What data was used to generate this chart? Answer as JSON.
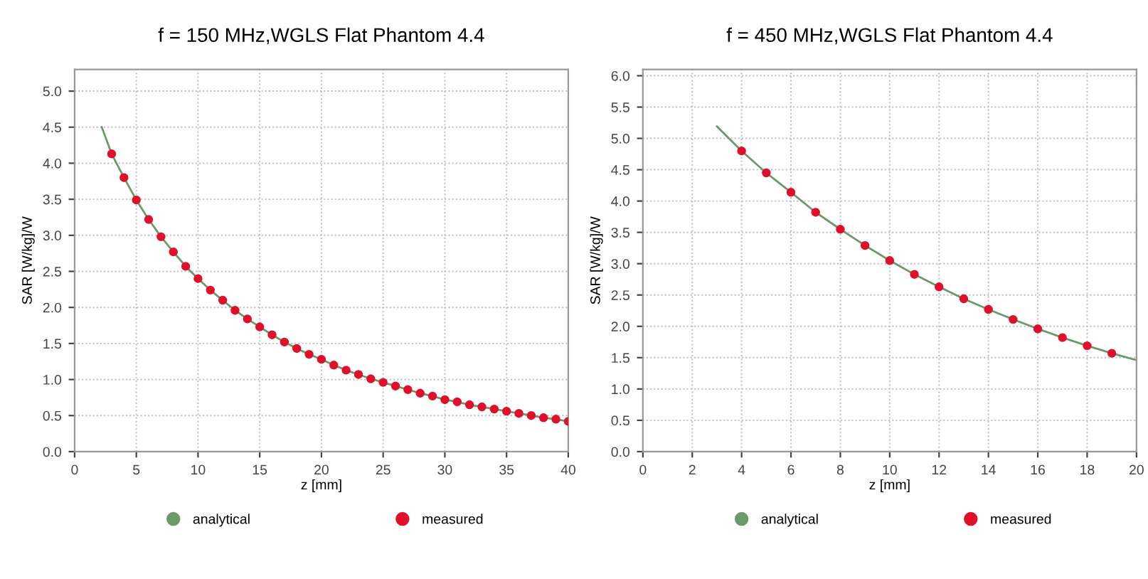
{
  "chart_data": [
    {
      "type": "line",
      "title": "f = 150 MHz,WGLS Flat Phantom 4.4",
      "xlabel": "z [mm]",
      "ylabel": "SAR [W/kg]/W",
      "xlim": [
        0,
        40
      ],
      "xticks": [
        0,
        5,
        10,
        15,
        20,
        25,
        30,
        35,
        40
      ],
      "ylim": [
        0,
        5.3
      ],
      "yticks": [
        {
          "value": 0,
          "label": "0.0"
        },
        0.5,
        {
          "value": 1,
          "label": "1.0"
        },
        1.5,
        {
          "value": 2,
          "label": "2.0"
        },
        2.5,
        {
          "value": 3,
          "label": "3.0"
        },
        3.5,
        {
          "value": 4,
          "label": "4.0"
        },
        4.5,
        {
          "value": 5,
          "label": "5.0"
        }
      ],
      "grid": true,
      "legend": "bottom",
      "series": [
        {
          "name": "analytical",
          "color": "#6a9a6a",
          "x": [
            2.2,
            3,
            4,
            5,
            6,
            7,
            8,
            9,
            10,
            11,
            12,
            13,
            14,
            15,
            16,
            17,
            18,
            19,
            20,
            21,
            22,
            23,
            24,
            25,
            26,
            27,
            28,
            29,
            30,
            31,
            32,
            33,
            34,
            35,
            36,
            37,
            38,
            39,
            40
          ],
          "values": [
            4.5,
            4.13,
            3.8,
            3.49,
            3.22,
            2.98,
            2.77,
            2.57,
            2.4,
            2.24,
            2.1,
            1.96,
            1.84,
            1.73,
            1.62,
            1.52,
            1.43,
            1.35,
            1.28,
            1.2,
            1.13,
            1.07,
            1.01,
            0.96,
            0.91,
            0.86,
            0.81,
            0.77,
            0.72,
            0.69,
            0.65,
            0.62,
            0.59,
            0.56,
            0.53,
            0.5,
            0.47,
            0.45,
            0.42
          ]
        },
        {
          "name": "measured",
          "type": "scatter",
          "marker": "circle",
          "color": "#e0102a",
          "x": [
            3,
            4,
            5,
            6,
            7,
            8,
            9,
            10,
            11,
            12,
            13,
            14,
            15,
            16,
            17,
            18,
            19,
            20,
            21,
            22,
            23,
            24,
            25,
            26,
            27,
            28,
            29,
            30,
            31,
            32,
            33,
            34,
            35,
            36,
            37,
            38,
            39,
            40
          ],
          "values": [
            4.13,
            3.8,
            3.49,
            3.22,
            2.98,
            2.77,
            2.57,
            2.4,
            2.24,
            2.1,
            1.96,
            1.84,
            1.73,
            1.62,
            1.52,
            1.43,
            1.35,
            1.28,
            1.2,
            1.13,
            1.07,
            1.01,
            0.96,
            0.91,
            0.86,
            0.81,
            0.77,
            0.72,
            0.69,
            0.65,
            0.62,
            0.59,
            0.56,
            0.53,
            0.5,
            0.47,
            0.45,
            0.42
          ]
        }
      ]
    },
    {
      "type": "line",
      "title": "f = 450 MHz,WGLS Flat Phantom 4.4",
      "xlabel": "z [mm]",
      "ylabel": "SAR [W/kg]/W",
      "xlim": [
        0,
        20
      ],
      "xticks": [
        0,
        2,
        4,
        6,
        8,
        10,
        12,
        14,
        16,
        18,
        20
      ],
      "ylim": [
        0,
        6.1
      ],
      "yticks": [
        {
          "value": 0,
          "label": "0.0"
        },
        0.5,
        {
          "value": 1,
          "label": "1.0"
        },
        1.5,
        {
          "value": 2,
          "label": "2.0"
        },
        2.5,
        {
          "value": 3,
          "label": "3.0"
        },
        3.5,
        {
          "value": 4,
          "label": "4.0"
        },
        4.5,
        {
          "value": 5,
          "label": "5.0"
        },
        5.5,
        {
          "value": 6,
          "label": "6.0"
        }
      ],
      "grid": true,
      "legend": "bottom",
      "series": [
        {
          "name": "analytical",
          "color": "#6a9a6a",
          "x": [
            3,
            4,
            5,
            6,
            7,
            8,
            9,
            10,
            11,
            12,
            13,
            14,
            15,
            16,
            17,
            18,
            19,
            20
          ],
          "values": [
            5.19,
            4.8,
            4.45,
            4.14,
            3.82,
            3.55,
            3.29,
            3.05,
            2.83,
            2.63,
            2.44,
            2.27,
            2.11,
            1.96,
            1.82,
            1.69,
            1.57,
            1.46
          ]
        },
        {
          "name": "measured",
          "type": "scatter",
          "marker": "circle",
          "color": "#e0102a",
          "x": [
            4,
            5,
            6,
            7,
            8,
            9,
            10,
            11,
            12,
            13,
            14,
            15,
            16,
            17,
            18,
            19
          ],
          "values": [
            4.8,
            4.45,
            4.14,
            3.82,
            3.55,
            3.29,
            3.05,
            2.83,
            2.63,
            2.44,
            2.27,
            2.11,
            1.96,
            1.82,
            1.69,
            1.57
          ]
        }
      ]
    }
  ]
}
